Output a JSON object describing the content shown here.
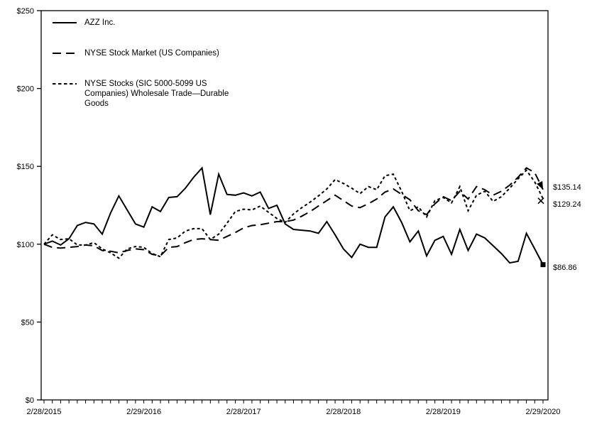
{
  "chart_data": {
    "type": "line",
    "title": "",
    "description": "Cumulative total return comparison, indexed to $100 on 2/28/2015, monthly points",
    "grid": false,
    "legend_position": "top-left-inside",
    "foreground_color": "#000000",
    "background_color": "#ffffff",
    "x_axis": {
      "tick_labels": [
        "2/28/2015",
        "2/29/2016",
        "2/28/2017",
        "2/28/2018",
        "2/28/2019",
        "2/29/2020"
      ],
      "label_month_indexes": [
        0,
        12,
        24,
        36,
        48,
        60
      ],
      "minor_tick_every": "month",
      "points_count": 61
    },
    "y_axis": {
      "tick_labels": [
        "$0",
        "$50",
        "$100",
        "$150",
        "$200",
        "$250"
      ],
      "tick_values": [
        0,
        50,
        100,
        150,
        200,
        250
      ],
      "range": [
        0,
        250
      ]
    },
    "series": [
      {
        "name": "AZZ Inc.",
        "line_style": "solid",
        "color": "#000000",
        "end_marker": "filled-square",
        "end_label": "$86.86",
        "end_value": 86.86,
        "values": [
          100,
          102,
          99.5,
          103.5,
          112,
          114,
          113,
          106.5,
          120,
          131,
          122,
          113,
          111,
          124,
          121,
          130,
          130.5,
          136,
          143,
          149,
          119,
          145,
          132,
          131.5,
          133,
          131,
          133.5,
          123,
          125,
          113,
          109.5,
          109,
          108.5,
          107,
          114.5,
          106,
          97,
          91.5,
          100,
          98,
          98,
          117.5,
          124,
          114,
          101.5,
          108.5,
          92.5,
          102.5,
          105,
          93.5,
          109.5,
          96,
          106.5,
          104,
          99,
          94,
          88,
          89,
          107,
          97,
          86.86
        ]
      },
      {
        "name": "NYSE Stock Market (US Companies)",
        "line_style": "long-dash",
        "color": "#000000",
        "end_marker": "filled-arrow",
        "end_label": "$135.14",
        "end_value": 135.14,
        "values": [
          100,
          98,
          97.5,
          98,
          98.5,
          99.5,
          99,
          96,
          95.5,
          94.5,
          96,
          97,
          96.5,
          93.5,
          92.5,
          98,
          98.5,
          101,
          103,
          103.5,
          103,
          102.5,
          105,
          107.5,
          110.5,
          112,
          112.5,
          113.5,
          114.5,
          114.5,
          115.5,
          118,
          121,
          124.5,
          128,
          131.5,
          128,
          124.5,
          123.5,
          126,
          129,
          133.5,
          135.5,
          132,
          128.5,
          121.5,
          119,
          126,
          130.5,
          128,
          134,
          129,
          137,
          135,
          131.5,
          134,
          138,
          143,
          149,
          146,
          135.14
        ]
      },
      {
        "name": "NYSE Stocks (SIC 5000-5099 US Companies) Wholesale Trade—Durable Goods",
        "line_style": "short-dash",
        "color": "#000000",
        "end_marker": "x",
        "end_label": "$129.24",
        "end_value": 129.24,
        "values": [
          100,
          106,
          103,
          103.5,
          99.5,
          99.5,
          101,
          97,
          94.5,
          91,
          97,
          98.5,
          98,
          94,
          92,
          103,
          104,
          108.5,
          110,
          110,
          103,
          106.5,
          113.5,
          121,
          122.5,
          122,
          124.5,
          120.5,
          116.5,
          114,
          119.5,
          123.5,
          127,
          131,
          135.5,
          141.5,
          139,
          136,
          132.5,
          137,
          135,
          144,
          145,
          134,
          121.5,
          124,
          117.5,
          128,
          130,
          126.5,
          137,
          121.5,
          131.5,
          134,
          127.5,
          130.5,
          136,
          142,
          147.5,
          140,
          129.24
        ]
      }
    ]
  }
}
